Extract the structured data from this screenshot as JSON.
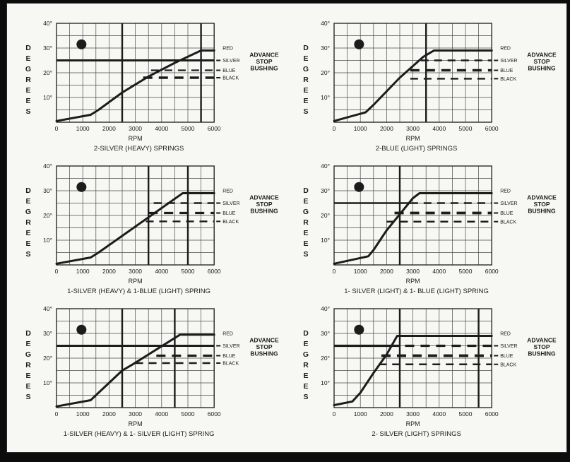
{
  "page": {
    "background": "#f7f7f4",
    "ink_color": "#1c1c1c",
    "grid_color": "#4a4a4a",
    "frame_color": "#0c0c0c"
  },
  "shared": {
    "ylabel": "DEGREES",
    "xlabel": "RPM",
    "y_tick_labels": [
      "40°",
      "30°",
      "20°",
      "10°"
    ],
    "y_tick_values": [
      40,
      30,
      20,
      10
    ],
    "x_tick_labels": [
      "0",
      "1000",
      "2000",
      "3000",
      "4000",
      "5000",
      "6000"
    ],
    "x_tick_values": [
      0,
      1000,
      2000,
      3000,
      4000,
      5000,
      6000
    ],
    "bushing_label_lines": [
      "ADVANCE",
      "STOP",
      "BUSHING"
    ],
    "curve_legend_label": "RED"
  },
  "chart_data": [
    {
      "id": "A",
      "type": "line",
      "title": "2-SILVER (HEAVY) SPRINGS",
      "xlabel": "RPM",
      "ylabel": "DEGREES",
      "xlim": [
        0,
        6000
      ],
      "ylim": [
        0,
        40
      ],
      "grid": true,
      "grid_step_x": 500,
      "grid_step_y": 5,
      "heavy_vertical_rpm": [
        2500,
        5500
      ],
      "curve_name": "RED",
      "curve_points": [
        [
          0,
          0.5
        ],
        [
          1300,
          3
        ],
        [
          1600,
          5
        ],
        [
          2500,
          12
        ],
        [
          3500,
          18.5
        ],
        [
          4500,
          24
        ],
        [
          5500,
          29
        ],
        [
          6000,
          29
        ]
      ],
      "red_label_level": 30,
      "stop_lines": [
        {
          "name": "SILVER",
          "level": 25,
          "solid": [
            0,
            6000
          ],
          "weight": 3
        },
        {
          "name": "BLUE",
          "level": 21,
          "dash": [
            3600,
            6000
          ],
          "weight": 2.2
        },
        {
          "name": "BLACK",
          "level": 18,
          "dash": [
            3300,
            6000
          ],
          "weight": 3.4
        }
      ]
    },
    {
      "id": "D",
      "type": "line",
      "title": "2-BLUE (LIGHT) SPRINGS",
      "xlabel": "RPM",
      "ylabel": "DEGREES",
      "xlim": [
        0,
        6000
      ],
      "ylim": [
        0,
        40
      ],
      "grid": true,
      "grid_step_x": 500,
      "grid_step_y": 5,
      "heavy_vertical_rpm": [
        3500
      ],
      "curve_name": "RED",
      "curve_points": [
        [
          0,
          0.5
        ],
        [
          1200,
          4
        ],
        [
          1500,
          7
        ],
        [
          2500,
          18
        ],
        [
          3400,
          26.5
        ],
        [
          3800,
          29
        ],
        [
          6000,
          29
        ]
      ],
      "red_label_level": 30,
      "stop_lines": [
        {
          "name": "SILVER",
          "level": 25,
          "dash": [
            3300,
            6000
          ],
          "weight": 2.4
        },
        {
          "name": "BLUE",
          "level": 21,
          "dash": [
            2900,
            6000
          ],
          "weight": 3.4
        },
        {
          "name": "BLACK",
          "level": 17.6,
          "dash": [
            2900,
            6000
          ],
          "weight": 2.4
        }
      ]
    },
    {
      "id": "B",
      "type": "line",
      "title": "1-SILVER (HEAVY) & 1-BLUE (LIGHT) SPRING",
      "xlabel": "RPM",
      "ylabel": "DEGREES",
      "xlim": [
        0,
        6000
      ],
      "ylim": [
        0,
        40
      ],
      "grid": true,
      "grid_step_x": 500,
      "grid_step_y": 5,
      "heavy_vertical_rpm": [
        3500,
        5000
      ],
      "curve_name": "RED",
      "curve_points": [
        [
          0,
          0.5
        ],
        [
          1300,
          3
        ],
        [
          1600,
          5
        ],
        [
          4800,
          29
        ],
        [
          6000,
          29
        ]
      ],
      "red_label_level": 30,
      "stop_lines": [
        {
          "name": "SILVER",
          "level": 25,
          "dash": [
            3700,
            6000
          ],
          "weight": 2.4
        },
        {
          "name": "BLUE",
          "level": 21,
          "dash": [
            3500,
            6000
          ],
          "weight": 3.2
        },
        {
          "name": "BLACK",
          "level": 17.6,
          "dash": [
            3400,
            6000
          ],
          "weight": 2.4
        }
      ]
    },
    {
      "id": "E",
      "type": "line",
      "title": "1- SILVER (LIGHT) & 1- BLUE (LIGHT) SPRING",
      "xlabel": "RPM",
      "ylabel": "DEGREES",
      "xlim": [
        0,
        6000
      ],
      "ylim": [
        0,
        40
      ],
      "grid": true,
      "grid_step_x": 500,
      "grid_step_y": 5,
      "heavy_vertical_rpm": [
        2500
      ],
      "curve_name": "RED",
      "curve_points": [
        [
          0,
          0.5
        ],
        [
          1300,
          3.5
        ],
        [
          1500,
          6
        ],
        [
          2000,
          14
        ],
        [
          2500,
          20.5
        ],
        [
          3000,
          27
        ],
        [
          3250,
          29
        ],
        [
          6000,
          29
        ]
      ],
      "red_label_level": 30,
      "stop_lines": [
        {
          "name": "SILVER",
          "level": 25,
          "solid": [
            0,
            2900
          ],
          "dash": [
            2900,
            6000
          ],
          "weight": 2.6
        },
        {
          "name": "BLUE",
          "level": 21,
          "dash": [
            2300,
            6000
          ],
          "weight": 3.8
        },
        {
          "name": "BLACK",
          "level": 17.5,
          "dash": [
            2000,
            6000
          ],
          "weight": 2.4
        }
      ]
    },
    {
      "id": "C",
      "type": "line",
      "title": "1-SILVER (HEAVY) & 1- SILVER (LIGHT) SPRING",
      "xlabel": "RPM",
      "ylabel": "DEGREES",
      "xlim": [
        0,
        6000
      ],
      "ylim": [
        0,
        40
      ],
      "grid": true,
      "grid_step_x": 500,
      "grid_step_y": 5,
      "heavy_vertical_rpm": [
        2500,
        4500
      ],
      "curve_name": "RED",
      "curve_points": [
        [
          0,
          0.5
        ],
        [
          1300,
          3
        ],
        [
          1600,
          6
        ],
        [
          2500,
          15
        ],
        [
          2900,
          17.5
        ],
        [
          4700,
          29.5
        ],
        [
          6000,
          29.5
        ]
      ],
      "red_label_level": 30,
      "stop_lines": [
        {
          "name": "SILVER",
          "level": 25,
          "solid": [
            0,
            6000
          ],
          "weight": 3
        },
        {
          "name": "BLUE",
          "level": 21,
          "dash": [
            3800,
            6000
          ],
          "weight": 3.2
        },
        {
          "name": "BLACK",
          "level": 18,
          "dash": [
            3000,
            6000
          ],
          "weight": 2.4
        }
      ]
    },
    {
      "id": "F",
      "type": "line",
      "title": "2- SILVER (LIGHT) SPRINGS",
      "xlabel": "RPM",
      "ylabel": "DEGREES",
      "xlim": [
        0,
        6000
      ],
      "ylim": [
        0,
        40
      ],
      "grid": true,
      "grid_step_x": 500,
      "grid_step_y": 5,
      "heavy_vertical_rpm": [
        2500,
        5500
      ],
      "curve_name": "RED",
      "curve_points": [
        [
          0,
          1
        ],
        [
          700,
          2.5
        ],
        [
          1000,
          6
        ],
        [
          1500,
          14
        ],
        [
          2000,
          21.5
        ],
        [
          2400,
          29
        ],
        [
          6000,
          29
        ]
      ],
      "red_label_level": 30,
      "stop_lines": [
        {
          "name": "SILVER",
          "level": 25,
          "solid": [
            0,
            2500
          ],
          "dash": [
            2700,
            6000
          ],
          "weight": 3.2
        },
        {
          "name": "BLUE",
          "level": 21,
          "dash": [
            1800,
            6000
          ],
          "weight": 3.8
        },
        {
          "name": "BLACK",
          "level": 17.5,
          "dash": [
            1700,
            6000
          ],
          "weight": 2.4
        }
      ]
    }
  ]
}
